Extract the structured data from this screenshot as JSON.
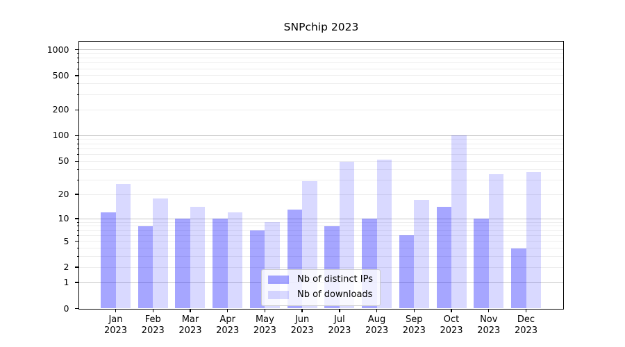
{
  "chart_data": {
    "type": "bar",
    "title": "SNPchip 2023",
    "categories": [
      {
        "month": "Jan",
        "year": "2023"
      },
      {
        "month": "Feb",
        "year": "2023"
      },
      {
        "month": "Mar",
        "year": "2023"
      },
      {
        "month": "Apr",
        "year": "2023"
      },
      {
        "month": "May",
        "year": "2023"
      },
      {
        "month": "Jun",
        "year": "2023"
      },
      {
        "month": "Jul",
        "year": "2023"
      },
      {
        "month": "Aug",
        "year": "2023"
      },
      {
        "month": "Sep",
        "year": "2023"
      },
      {
        "month": "Oct",
        "year": "2023"
      },
      {
        "month": "Nov",
        "year": "2023"
      },
      {
        "month": "Dec",
        "year": "2023"
      }
    ],
    "series": [
      {
        "name": "Nb of distinct IPs",
        "color": "rgba(0,0,255,0.35)",
        "values": [
          12,
          8,
          10,
          10,
          7,
          13,
          8,
          10,
          6,
          14,
          10,
          4
        ]
      },
      {
        "name": "Nb of downloads",
        "color": "rgba(0,0,255,0.15)",
        "values": [
          27,
          18,
          14,
          12,
          9,
          29,
          49,
          52,
          17,
          100,
          35,
          37
        ]
      }
    ],
    "yscale": "log(1+x)",
    "yticks": [
      0,
      1,
      2,
      5,
      10,
      20,
      50,
      100,
      200,
      500,
      1000
    ],
    "ylim": [
      0,
      1250
    ],
    "xlabel": "",
    "ylabel": "",
    "grid": true,
    "legend_position": "lower center"
  }
}
